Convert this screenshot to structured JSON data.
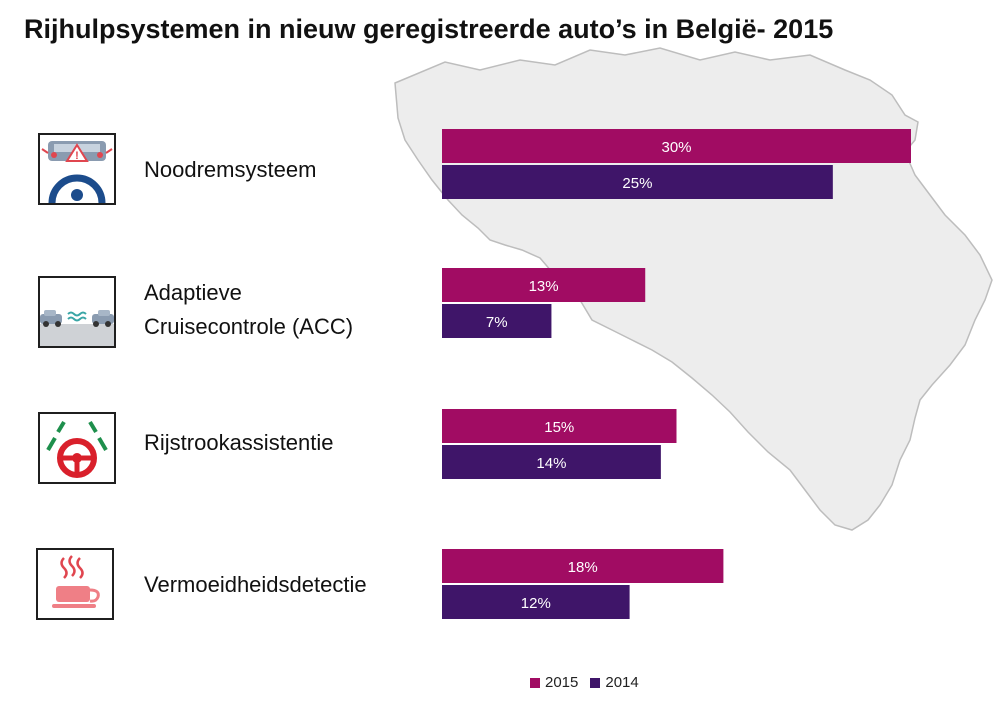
{
  "title": "Rijhulpsystemen in nieuw geregistreerde auto’s in België- 2015",
  "colors": {
    "s2015": "#a10c63",
    "s2014": "#3f1569",
    "map_fill": "#ededed",
    "map_stroke": "#bdbdbd",
    "bar_text": "#ffffff"
  },
  "categories": [
    {
      "lines": [
        "Noodremsysteem"
      ],
      "icon": "emergency-brake-icon"
    },
    {
      "lines": [
        "Adaptieve",
        "Cruisecontrole (ACC)"
      ],
      "icon": "adaptive-cruise-control-icon"
    },
    {
      "lines": [
        "Rijstrookassistentie"
      ],
      "icon": "lane-assist-icon"
    },
    {
      "lines": [
        "Vermoeidheidsdetectie"
      ],
      "icon": "fatigue-detection-icon"
    }
  ],
  "legend": [
    {
      "label": "2015",
      "color": "#a10c63"
    },
    {
      "label": "2014",
      "color": "#3f1569"
    }
  ],
  "chart_data": {
    "type": "bar",
    "orientation": "horizontal",
    "title": "Rijhulpsystemen in nieuw geregistreerde auto’s in België- 2015",
    "categories": [
      "Noodremsysteem",
      "Adaptieve Cruisecontrole (ACC)",
      "Rijstrookassistentie",
      "Vermoeidheidsdetectie"
    ],
    "series": [
      {
        "name": "2015",
        "values": [
          30,
          13,
          15,
          18
        ],
        "labels": [
          "30%",
          "13%",
          "15%",
          "18%"
        ],
        "color": "#a10c63"
      },
      {
        "name": "2014",
        "values": [
          25,
          7,
          14,
          12
        ],
        "labels": [
          "25%",
          "7%",
          "14%",
          "12%"
        ],
        "color": "#3f1569"
      }
    ],
    "unit": "%",
    "xlim": [
      0,
      30
    ],
    "grid": false,
    "legend_position": "bottom"
  }
}
